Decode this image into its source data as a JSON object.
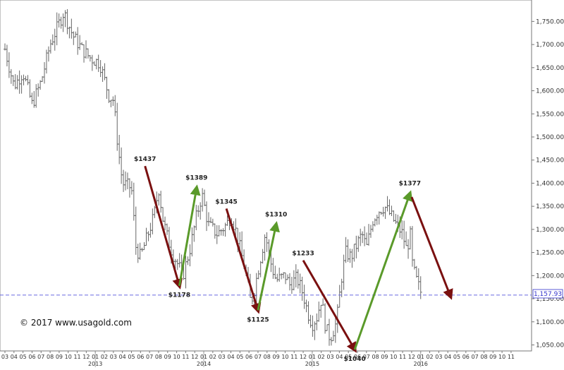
{
  "chart_data": {
    "type": "ohlc",
    "title": "",
    "xlabel": "",
    "ylabel": "",
    "ylim": [
      1020,
      1800
    ],
    "yticks": [
      1050,
      1100,
      1150,
      1200,
      1250,
      1300,
      1350,
      1400,
      1450,
      1500,
      1550,
      1600,
      1650,
      1700,
      1750
    ],
    "ytick_labels": [
      "1,050.00",
      "1,100.00",
      "1,150.00",
      "1,200.00",
      "1,250.00",
      "1,300.00",
      "1,350.00",
      "1,400.00",
      "1,450.00",
      "1,500.00",
      "1,550.00",
      "1,600.00",
      "1,650.00",
      "1,700.00",
      "1,750.00"
    ],
    "x_month_labels": [
      "03",
      "04",
      "05",
      "06",
      "07",
      "08",
      "09",
      "10",
      "11",
      "12",
      "01",
      "02",
      "03",
      "04",
      "05",
      "06",
      "07",
      "08",
      "09",
      "10",
      "11",
      "12",
      "01",
      "02",
      "03",
      "04",
      "05",
      "06",
      "07",
      "08",
      "09",
      "10",
      "11",
      "12",
      "01",
      "02",
      "03",
      "04",
      "05",
      "06",
      "07",
      "08",
      "09",
      "10",
      "11",
      "12",
      "01",
      "02",
      "03",
      "04",
      "05",
      "06",
      "07",
      "08",
      "09",
      "10",
      "11"
    ],
    "x_year_labels": [
      {
        "label": "2013",
        "month_index": 10
      },
      {
        "label": "2014",
        "month_index": 22
      },
      {
        "label": "2015",
        "month_index": 34
      },
      {
        "label": "2016",
        "month_index": 46
      }
    ],
    "weekly_price_path": [
      {
        "t": 0,
        "p": 1690
      },
      {
        "t": 1,
        "p": 1610
      },
      {
        "t": 2,
        "p": 1640
      },
      {
        "t": 3,
        "p": 1570
      },
      {
        "t": 4,
        "p": 1620
      },
      {
        "t": 5,
        "p": 1700
      },
      {
        "t": 6.5,
        "p": 1770
      },
      {
        "t": 7.5,
        "p": 1720
      },
      {
        "t": 8.5,
        "p": 1690
      },
      {
        "t": 9.5,
        "p": 1670
      },
      {
        "t": 10.5,
        "p": 1660
      },
      {
        "t": 11.5,
        "p": 1590
      },
      {
        "t": 12,
        "p": 1580
      },
      {
        "t": 12.5,
        "p": 1480
      },
      {
        "t": 13,
        "p": 1400
      },
      {
        "t": 14,
        "p": 1390
      },
      {
        "t": 14.5,
        "p": 1260
      },
      {
        "t": 15,
        "p": 1240
      },
      {
        "t": 15.5,
        "p": 1270
      },
      {
        "t": 16.5,
        "p": 1330
      },
      {
        "t": 17,
        "p": 1390
      },
      {
        "t": 17.5,
        "p": 1320
      },
      {
        "t": 18,
        "p": 1280
      },
      {
        "t": 18.5,
        "p": 1250
      },
      {
        "t": 19,
        "p": 1230
      },
      {
        "t": 19.7,
        "p": 1200
      },
      {
        "t": 20.5,
        "p": 1260
      },
      {
        "t": 21.2,
        "p": 1330
      },
      {
        "t": 21.8,
        "p": 1375
      },
      {
        "t": 22.5,
        "p": 1310
      },
      {
        "t": 23.5,
        "p": 1290
      },
      {
        "t": 24.5,
        "p": 1310
      },
      {
        "t": 25,
        "p": 1330
      },
      {
        "t": 25.5,
        "p": 1300
      },
      {
        "t": 26,
        "p": 1260
      },
      {
        "t": 26.7,
        "p": 1200
      },
      {
        "t": 27.2,
        "p": 1140
      },
      {
        "t": 27.6,
        "p": 1170
      },
      {
        "t": 28.2,
        "p": 1230
      },
      {
        "t": 28.8,
        "p": 1290
      },
      {
        "t": 29.5,
        "p": 1220
      },
      {
        "t": 30,
        "p": 1190
      },
      {
        "t": 31,
        "p": 1200
      },
      {
        "t": 31.5,
        "p": 1180
      },
      {
        "t": 32.3,
        "p": 1195
      },
      {
        "t": 33,
        "p": 1160
      },
      {
        "t": 33.5,
        "p": 1120
      },
      {
        "t": 34,
        "p": 1095
      },
      {
        "t": 34.5,
        "p": 1110
      },
      {
        "t": 35,
        "p": 1150
      },
      {
        "t": 35.5,
        "p": 1085
      },
      {
        "t": 36,
        "p": 1065
      },
      {
        "t": 36.7,
        "p": 1100
      },
      {
        "t": 37.2,
        "p": 1190
      },
      {
        "t": 37.7,
        "p": 1250
      },
      {
        "t": 38.3,
        "p": 1240
      },
      {
        "t": 39,
        "p": 1270
      },
      {
        "t": 39.5,
        "p": 1290
      },
      {
        "t": 40,
        "p": 1260
      },
      {
        "t": 40.7,
        "p": 1320
      },
      {
        "t": 41.3,
        "p": 1340
      },
      {
        "t": 42,
        "p": 1350
      },
      {
        "t": 42.7,
        "p": 1330
      },
      {
        "t": 43.3,
        "p": 1310
      },
      {
        "t": 44,
        "p": 1290
      },
      {
        "t": 44.5,
        "p": 1250
      },
      {
        "t": 44.8,
        "p": 1300
      },
      {
        "t": 45.1,
        "p": 1220
      },
      {
        "t": 45.6,
        "p": 1185
      },
      {
        "t": 46,
        "p": 1165
      }
    ],
    "trend_arrows": [
      {
        "label": "$1437",
        "direction": "down",
        "from": {
          "t": 15.5,
          "p": 1437
        },
        "to": {
          "t": 19.3,
          "p": 1178
        }
      },
      {
        "label": "$1389",
        "direction": "up",
        "from": {
          "t": 19.3,
          "p": 1178
        },
        "to": {
          "t": 21.2,
          "p": 1389
        }
      },
      {
        "label": "$1345",
        "direction": "down",
        "from": {
          "t": 24.5,
          "p": 1345
        },
        "to": {
          "t": 28.0,
          "p": 1125
        }
      },
      {
        "label": "$1310",
        "direction": "up",
        "from": {
          "t": 28.0,
          "p": 1125
        },
        "to": {
          "t": 30.0,
          "p": 1310
        }
      },
      {
        "label": "$1233",
        "direction": "down",
        "from": {
          "t": 33.0,
          "p": 1233
        },
        "to": {
          "t": 38.7,
          "p": 1040
        }
      },
      {
        "label": "$1377",
        "direction": "up",
        "from": {
          "t": 38.7,
          "p": 1040
        },
        "to": {
          "t": 44.8,
          "p": 1377
        }
      },
      {
        "label": "",
        "direction": "down",
        "from": {
          "t": 45.0,
          "p": 1370
        },
        "to": {
          "t": 49.3,
          "p": 1155
        }
      }
    ],
    "current_price": 1157.93,
    "current_price_label": "1,157.93",
    "grid": false,
    "legend": "none"
  },
  "colors": {
    "bars": "#666666",
    "down_arrow": "#7a1010",
    "up_arrow": "#5a9a2a",
    "current_line": "#6a6ae0",
    "current_label": "#3333cc"
  },
  "copyright": "© 2017 www.usagold.com"
}
